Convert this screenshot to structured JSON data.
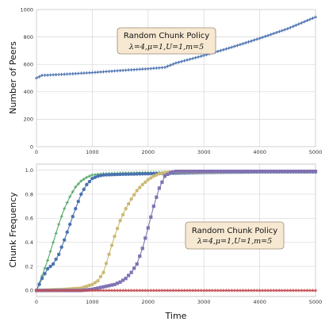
{
  "chart_data": [
    {
      "type": "line",
      "title": "",
      "xlabel": "",
      "ylabel": "Number of Peers",
      "xlim": [
        0,
        5000
      ],
      "ylim": [
        0,
        1000
      ],
      "xticks": [
        "0",
        "1000",
        "2000",
        "3000",
        "4000",
        "5000"
      ],
      "yticks": [
        "0",
        "200",
        "400",
        "600",
        "800",
        "1000"
      ],
      "grid": true,
      "annotation": {
        "line1": "Random Chunk Policy",
        "line2": "λ=4,μ=1,U=1,m=5",
        "placement": "top-center"
      },
      "series": [
        {
          "color": "#4c72b0",
          "marker": "plus",
          "x": [
            0,
            100,
            500,
            1000,
            1500,
            2000,
            2300,
            2500,
            3000,
            3500,
            4000,
            4500,
            5000
          ],
          "y": [
            500,
            520,
            528,
            540,
            555,
            568,
            578,
            610,
            665,
            725,
            790,
            860,
            945
          ]
        }
      ]
    },
    {
      "type": "line",
      "title": "",
      "xlabel": "Time",
      "ylabel": "Chunk Frequency",
      "xlim": [
        0,
        5000
      ],
      "ylim": [
        -0.05,
        1.05
      ],
      "xticks": [
        "0",
        "1000",
        "2000",
        "3000",
        "4000",
        "5000"
      ],
      "yticks": [
        "0.0",
        "0.2",
        "0.4",
        "0.6",
        "0.8",
        "1.0"
      ],
      "grid": true,
      "annotation": {
        "line1": "Random Chunk Policy",
        "line2": "λ=4,μ=1,U=1,m=5",
        "placement": "center-right"
      },
      "series": [
        {
          "color": "#55a868",
          "marker": "plus",
          "x": [
            0,
            100,
            200,
            300,
            400,
            500,
            600,
            700,
            800,
            900,
            1000,
            1200,
            1500,
            2000,
            2500,
            3000,
            4000,
            5000
          ],
          "y": [
            0.0,
            0.12,
            0.25,
            0.4,
            0.55,
            0.68,
            0.78,
            0.86,
            0.91,
            0.94,
            0.96,
            0.97,
            0.975,
            0.98,
            0.98,
            0.985,
            0.985,
            0.985
          ]
        },
        {
          "color": "#4c72b0",
          "marker": "circle",
          "x": [
            0,
            100,
            200,
            300,
            400,
            500,
            600,
            700,
            800,
            900,
            1000,
            1100,
            1200,
            1500,
            2000,
            2500,
            3000,
            4000,
            5000
          ],
          "y": [
            0.0,
            0.1,
            0.18,
            0.22,
            0.3,
            0.42,
            0.55,
            0.68,
            0.8,
            0.88,
            0.93,
            0.95,
            0.96,
            0.965,
            0.97,
            0.975,
            0.98,
            0.985,
            0.985
          ]
        },
        {
          "color": "#ccb974",
          "marker": "circle",
          "x": [
            0,
            500,
            800,
            1000,
            1100,
            1200,
            1300,
            1400,
            1500,
            1600,
            1700,
            1800,
            1900,
            2000,
            2100,
            2200,
            2300,
            2500,
            3000,
            4000,
            5000
          ],
          "y": [
            0.0,
            0.01,
            0.02,
            0.05,
            0.08,
            0.15,
            0.3,
            0.45,
            0.58,
            0.68,
            0.76,
            0.83,
            0.88,
            0.92,
            0.95,
            0.97,
            0.98,
            0.985,
            0.985,
            0.99,
            0.99
          ]
        },
        {
          "color": "#8172b2",
          "marker": "square",
          "x": [
            0,
            800,
            1000,
            1200,
            1400,
            1500,
            1600,
            1700,
            1800,
            1900,
            2000,
            2100,
            2200,
            2300,
            2400,
            2500,
            3000,
            4000,
            5000
          ],
          "y": [
            0.0,
            0.0,
            0.01,
            0.03,
            0.05,
            0.07,
            0.1,
            0.15,
            0.22,
            0.35,
            0.52,
            0.7,
            0.85,
            0.95,
            0.98,
            0.99,
            0.99,
            0.99,
            0.99
          ]
        },
        {
          "color": "#c44e52",
          "marker": "star",
          "x": [
            0,
            500,
            1000,
            1500,
            2000,
            2500,
            3000,
            3500,
            4000,
            4500,
            5000
          ],
          "y": [
            0.0,
            0.0,
            0.0,
            0.0,
            0.0,
            0.0,
            0.0,
            0.0,
            0.0,
            0.0,
            0.0
          ]
        }
      ]
    }
  ]
}
